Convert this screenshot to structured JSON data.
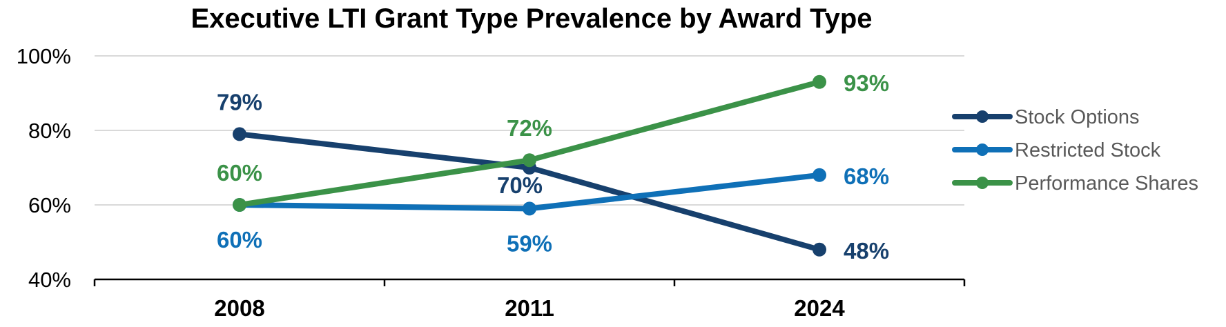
{
  "chart_data": {
    "type": "line",
    "title": "Executive LTI Grant Type Prevalence by Award Type",
    "categories": [
      "2008",
      "2011",
      "2024"
    ],
    "ylim": [
      40,
      100
    ],
    "yticks": [
      40,
      60,
      80,
      100
    ],
    "ytick_labels": [
      "40%",
      "60%",
      "80%",
      "100%"
    ],
    "grid": true,
    "legend_position": "right",
    "series": [
      {
        "name": "Stock Options",
        "values": [
          79,
          70,
          48
        ],
        "labels": [
          "79%",
          "70%",
          "48%"
        ],
        "color": "#17406d"
      },
      {
        "name": "Restricted Stock",
        "values": [
          60,
          59,
          68
        ],
        "labels": [
          "60%",
          "59%",
          "68%"
        ],
        "color": "#0f70b7"
      },
      {
        "name": "Performance Shares",
        "values": [
          60,
          72,
          93
        ],
        "labels": [
          "60%",
          "72%",
          "93%"
        ],
        "color": "#3b9248"
      }
    ]
  }
}
